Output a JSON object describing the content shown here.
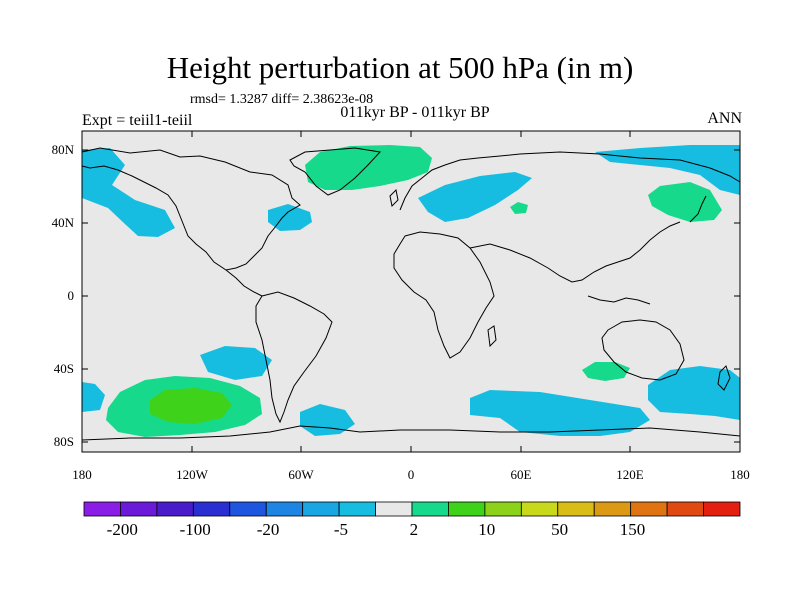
{
  "title": "Height perturbation at 500 hPa (in m)",
  "rmsd_line": "rmsd= 1.3287 diff= 2.38623e-08",
  "period": "011kyr BP - 011kyr BP",
  "expt": "Expt = teiil1-teiil",
  "season": "ANN",
  "lat_labels": [
    "80N",
    "40N",
    "0",
    "40S",
    "80S"
  ],
  "lon_labels": [
    "180",
    "120W",
    "60W",
    "0",
    "60E",
    "120E",
    "180"
  ],
  "colorbar": {
    "colors": [
      "#8b1ee6",
      "#6a1ad8",
      "#4a1cc9",
      "#2a2fd1",
      "#1f56e0",
      "#1e85e3",
      "#1aa6e2",
      "#17bde0",
      "#e8e8e8",
      "#17d98b",
      "#3ed21a",
      "#8cd21a",
      "#c8d81a",
      "#d9bd16",
      "#dc9a14",
      "#e07412",
      "#e04a12",
      "#e41e10"
    ],
    "labels": [
      "-200",
      "-100",
      "-20",
      "-5",
      "2",
      "10",
      "50",
      "150"
    ]
  },
  "colors": {
    "negative": "#17bde0",
    "positive_light": "#17d98b",
    "positive_mid": "#3ed21a",
    "background": "#e8e8e8"
  }
}
